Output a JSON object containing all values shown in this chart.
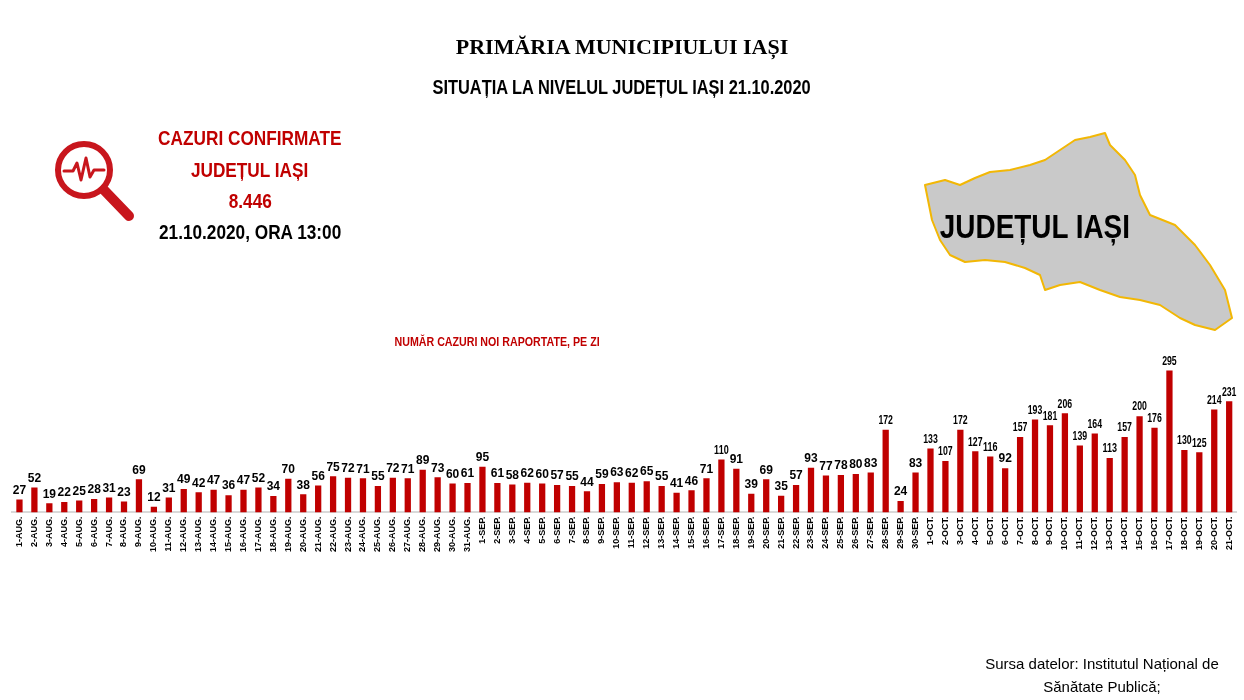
{
  "chart_data": {
    "type": "bar",
    "title": "PRIMĂRIA MUNICIPIULUI IAȘI",
    "subtitle": "SITUAȚIA LA NIVELUL JUDEȚUL IAȘI 21.10.2020",
    "annotations": [
      "CAZURI CONFIRMATE",
      "JUDEȚUL IAȘI",
      "8.446",
      "21.10.2020, ORA 13:00",
      "JUDEȚUL IAȘI",
      "NUMĂR CAZURI NOI RAPORTATE, PE ZI",
      "Sursa datelor: Institutul Național de Sănătate Publică;"
    ],
    "categories": [
      "1-AUG.",
      "2-AUG.",
      "3-AUG.",
      "4-AUG.",
      "5-AUG.",
      "6-AUG.",
      "7-AUG.",
      "8-AUG.",
      "9-AUG.",
      "10-AUG.",
      "11-AUG.",
      "12-AUG.",
      "13-AUG.",
      "14-AUG.",
      "15-AUG.",
      "16-AUG.",
      "17-AUG.",
      "18-AUG.",
      "19-AUG.",
      "20-AUG.",
      "21-AUG.",
      "22-AUG.",
      "23-AUG.",
      "24-AUG.",
      "25-AUG.",
      "26-AUG.",
      "27-AUG.",
      "28-AUG.",
      "29-AUG.",
      "30-AUG.",
      "31-AUG.",
      "1-SEP.",
      "2-SEP.",
      "3-SEP.",
      "4-SEP.",
      "5-SEP.",
      "6-SEP.",
      "7-SEP.",
      "8-SEP.",
      "9-SEP.",
      "10-SEP.",
      "11-SEP.",
      "12-SEP.",
      "13-SEP.",
      "14-SEP.",
      "15-SEP.",
      "16-SEP.",
      "17-SEP.",
      "18-SEP.",
      "19-SEP.",
      "20-SEP.",
      "21-SEP.",
      "22-SEP.",
      "23-SEP.",
      "24-SEP.",
      "25-SEP.",
      "26-SEP.",
      "27-SEP.",
      "28-SEP.",
      "29-SEP.",
      "30-SEP.",
      "1-OCT.",
      "2-OCT.",
      "3-OCT.",
      "4-OCT.",
      "5-OCT.",
      "6-OCT.",
      "7-OCT.",
      "8-OCT.",
      "9-OCT.",
      "10-OCT.",
      "11-OCT.",
      "12-OCT.",
      "13-OCT.",
      "14-OCT.",
      "15-OCT.",
      "16-OCT.",
      "17-OCT.",
      "18-OCT.",
      "19-OCT.",
      "20-OCT.",
      "21-OCT."
    ],
    "values": [
      27,
      52,
      19,
      22,
      25,
      28,
      31,
      23,
      69,
      12,
      31,
      49,
      42,
      47,
      36,
      47,
      52,
      34,
      70,
      38,
      56,
      75,
      72,
      71,
      55,
      72,
      71,
      89,
      73,
      60,
      61,
      95,
      61,
      58,
      62,
      60,
      57,
      55,
      44,
      59,
      63,
      62,
      65,
      55,
      41,
      46,
      71,
      110,
      91,
      39,
      69,
      35,
      57,
      93,
      77,
      78,
      80,
      83,
      172,
      24,
      83,
      133,
      107,
      172,
      127,
      116,
      92,
      157,
      193,
      181,
      206,
      139,
      164,
      113,
      157,
      200,
      176,
      295,
      130,
      125,
      214,
      231
    ],
    "color": "#c00000",
    "data_labels": true
  }
}
